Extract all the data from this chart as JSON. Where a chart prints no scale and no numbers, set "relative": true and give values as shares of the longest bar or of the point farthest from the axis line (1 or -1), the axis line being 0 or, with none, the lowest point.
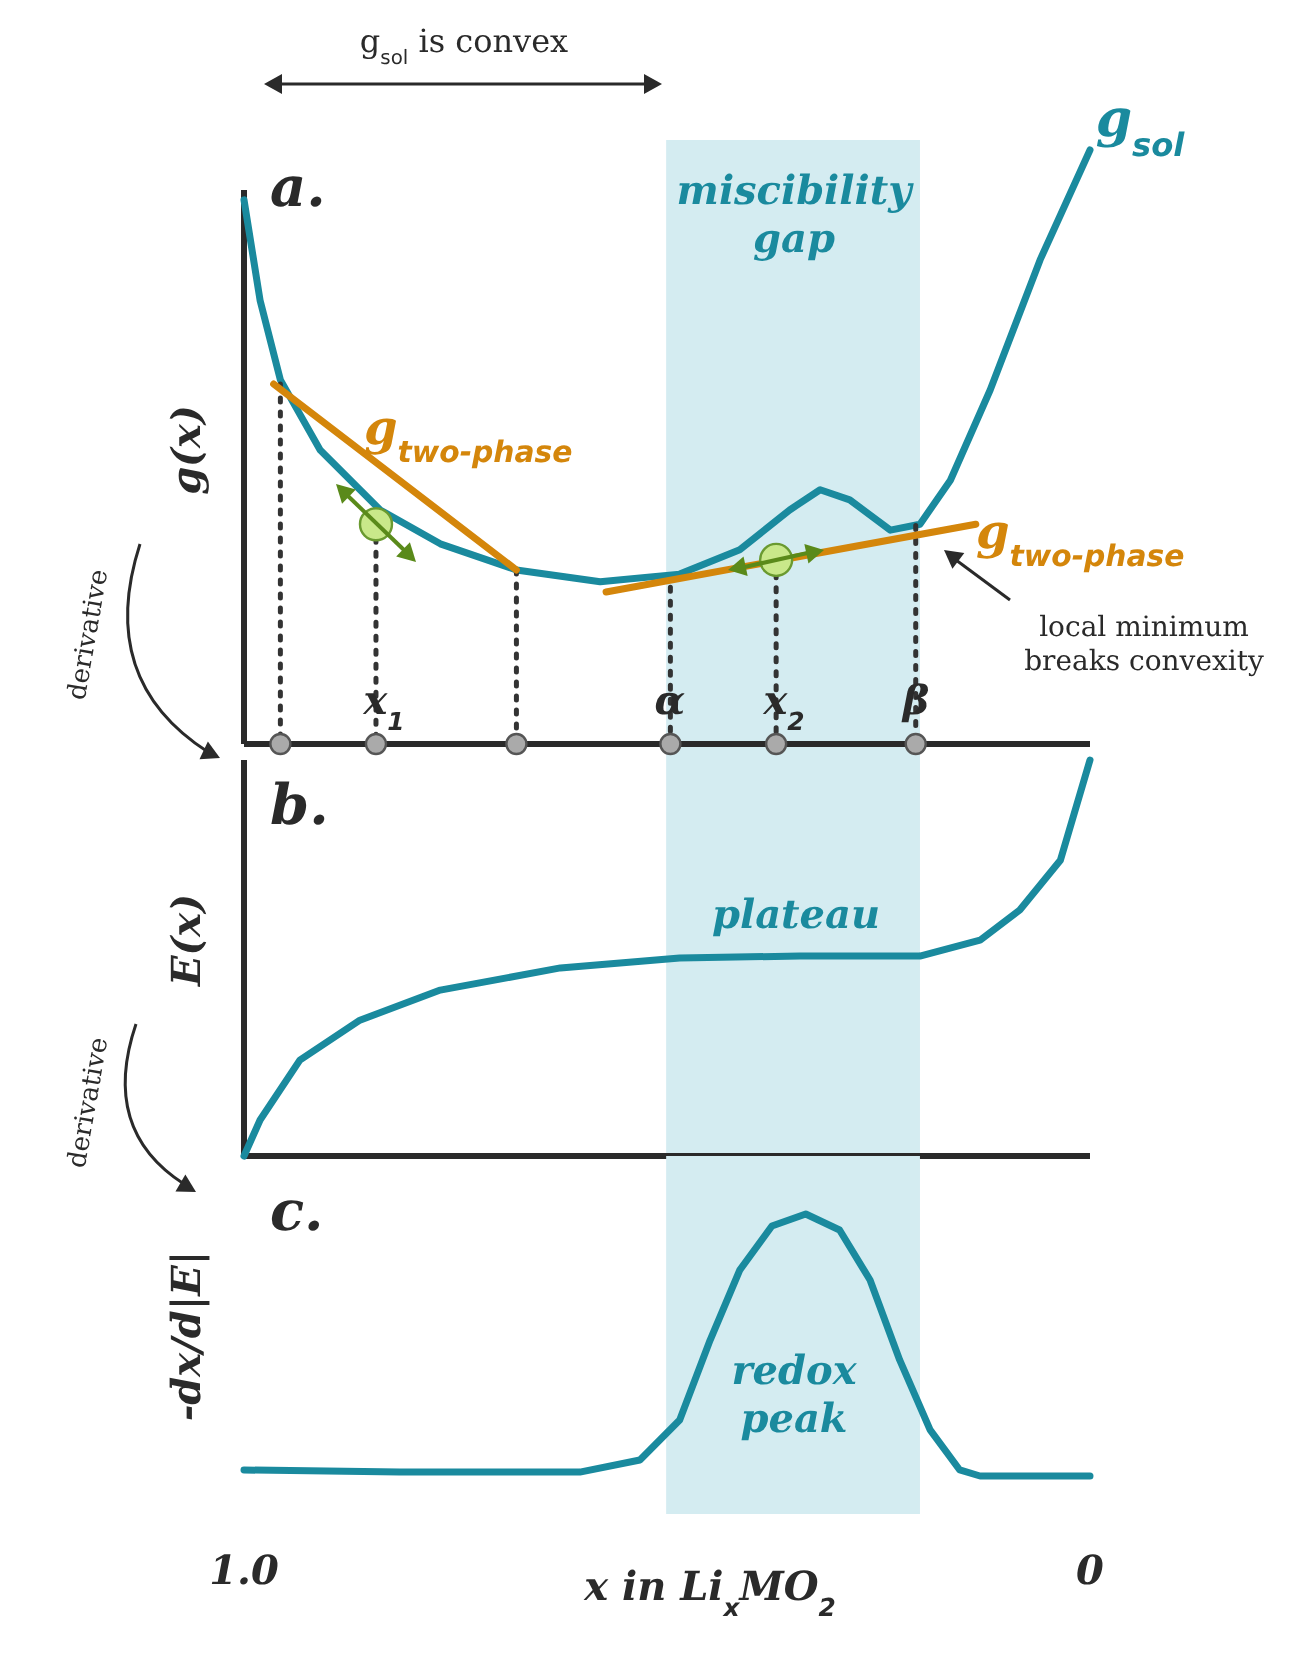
{
  "chart_data": [
    {
      "type": "line",
      "relative": true,
      "ylabel": "g(x)",
      "xlim": [
        1,
        0
      ],
      "tick_labels": false,
      "bands": [
        {
          "axis": "x",
          "from": 0.501,
          "to": 0.201,
          "label": "miscibility gap",
          "color": "#d4ecf1"
        }
      ],
      "annotations": [
        "a.",
        "g$_{sol}$",
        "g$_{two-phase}$",
        "g$_{two-phase}$",
        "local minimum breaks convexity",
        "x$_{1}$",
        "α",
        "x$_{2}$",
        "β",
        "g$_{sol}$ is convex",
        "derivative"
      ],
      "series": [
        {
          "type": "line",
          "color": "#1a8a9e",
          "x": [
            1.0,
            0.981,
            0.957,
            0.91,
            0.839,
            0.768,
            0.678,
            0.579,
            0.485,
            0.414,
            0.355,
            0.319,
            0.284,
            0.236,
            0.201,
            0.165,
            0.118,
            0.059,
            0.0
          ],
          "values": [
            0.916,
            0.747,
            0.613,
            0.495,
            0.394,
            0.337,
            0.293,
            0.273,
            0.286,
            0.327,
            0.394,
            0.428,
            0.411,
            0.36,
            0.37,
            0.444,
            0.596,
            0.815,
            1.0
          ]
        },
        {
          "type": "line",
          "line_style": "dotted",
          "color": "#333333",
          "x": [
            0.957,
            0.957
          ],
          "values": [
            0.606,
            0
          ]
        },
        {
          "type": "line",
          "line_style": "dotted",
          "color": "#333333",
          "x": [
            0.844,
            0.844
          ],
          "values": [
            0.37,
            0
          ]
        },
        {
          "type": "line",
          "line_style": "dotted",
          "color": "#333333",
          "x": [
            0.678,
            0.678
          ],
          "values": [
            0.293,
            0
          ]
        },
        {
          "type": "line",
          "line_style": "dotted",
          "color": "#333333",
          "x": [
            0.496,
            0.496
          ],
          "values": [
            0.264,
            0
          ]
        },
        {
          "type": "line",
          "line_style": "dotted",
          "color": "#333333",
          "x": [
            0.371,
            0.371
          ],
          "values": [
            0.31,
            0
          ]
        },
        {
          "type": "line",
          "line_style": "dotted",
          "color": "#333333",
          "x": [
            0.206,
            0.206
          ],
          "values": [
            0.368,
            0
          ]
        },
        {
          "type": "line",
          "color": "#d4860b",
          "x": [
            0.965,
            0.678
          ],
          "values": [
            0.606,
            0.293
          ]
        },
        {
          "type": "line",
          "color": "#d4860b",
          "x": [
            0.572,
            0.135
          ],
          "values": [
            0.256,
            0.37
          ]
        },
        {
          "type": "scatter",
          "marker": "circle",
          "color": "#c9e88a",
          "x": [
            0.844,
            0.371
          ],
          "values": [
            0.37,
            0.31
          ]
        },
        {
          "type": "scatter",
          "marker": "circle",
          "color": "#aaaaaa",
          "x": [
            0.957,
            0.844,
            0.678,
            0.496,
            0.371,
            0.206
          ],
          "values": [
            0,
            0,
            0,
            0,
            0,
            0
          ]
        }
      ]
    },
    {
      "type": "line",
      "relative": true,
      "ylabel": "E(x)",
      "xlim": [
        1,
        0
      ],
      "tick_labels": false,
      "bands": [
        {
          "axis": "x",
          "from": 0.501,
          "to": 0.201,
          "color": "#d4ecf1"
        }
      ],
      "annotations": [
        "b.",
        "plateau",
        "derivative"
      ],
      "series": [
        {
          "type": "line",
          "color": "#1a8a9e",
          "x": [
            1.0,
            0.981,
            0.934,
            0.863,
            0.768,
            0.626,
            0.485,
            0.343,
            0.201,
            0.13,
            0.083,
            0.035,
            0.0
          ],
          "values": [
            0,
            0.091,
            0.242,
            0.343,
            0.419,
            0.475,
            0.5,
            0.505,
            0.505,
            0.545,
            0.621,
            0.747,
            1.0
          ]
        }
      ]
    },
    {
      "type": "line",
      "relative": true,
      "ylabel": "-dx/d|E|",
      "xlabel": "x in Li$_{x}$MO$_{2}$",
      "xlim": [
        1,
        0
      ],
      "xticks": [
        {
          "value": 1,
          "label": "1.0"
        },
        0
      ],
      "tick_labels": "x",
      "bands": [
        {
          "axis": "x",
          "from": 0.501,
          "to": 0.201,
          "color": "#d4ecf1"
        }
      ],
      "annotations": [
        "c.",
        "redox peak"
      ],
      "series": [
        {
          "type": "line",
          "color": "#1a8a9e",
          "x": [
            1.0,
            0.816,
            0.603,
            0.532,
            0.485,
            0.449,
            0.414,
            0.376,
            0.336,
            0.296,
            0.26,
            0.225,
            0.189,
            0.154,
            0.13,
            0.0
          ],
          "values": [
            0.023,
            0.015,
            0.015,
            0.061,
            0.214,
            0.519,
            0.786,
            0.954,
            1.0,
            0.939,
            0.748,
            0.443,
            0.176,
            0.023,
            0,
            0
          ]
        }
      ]
    }
  ]
}
